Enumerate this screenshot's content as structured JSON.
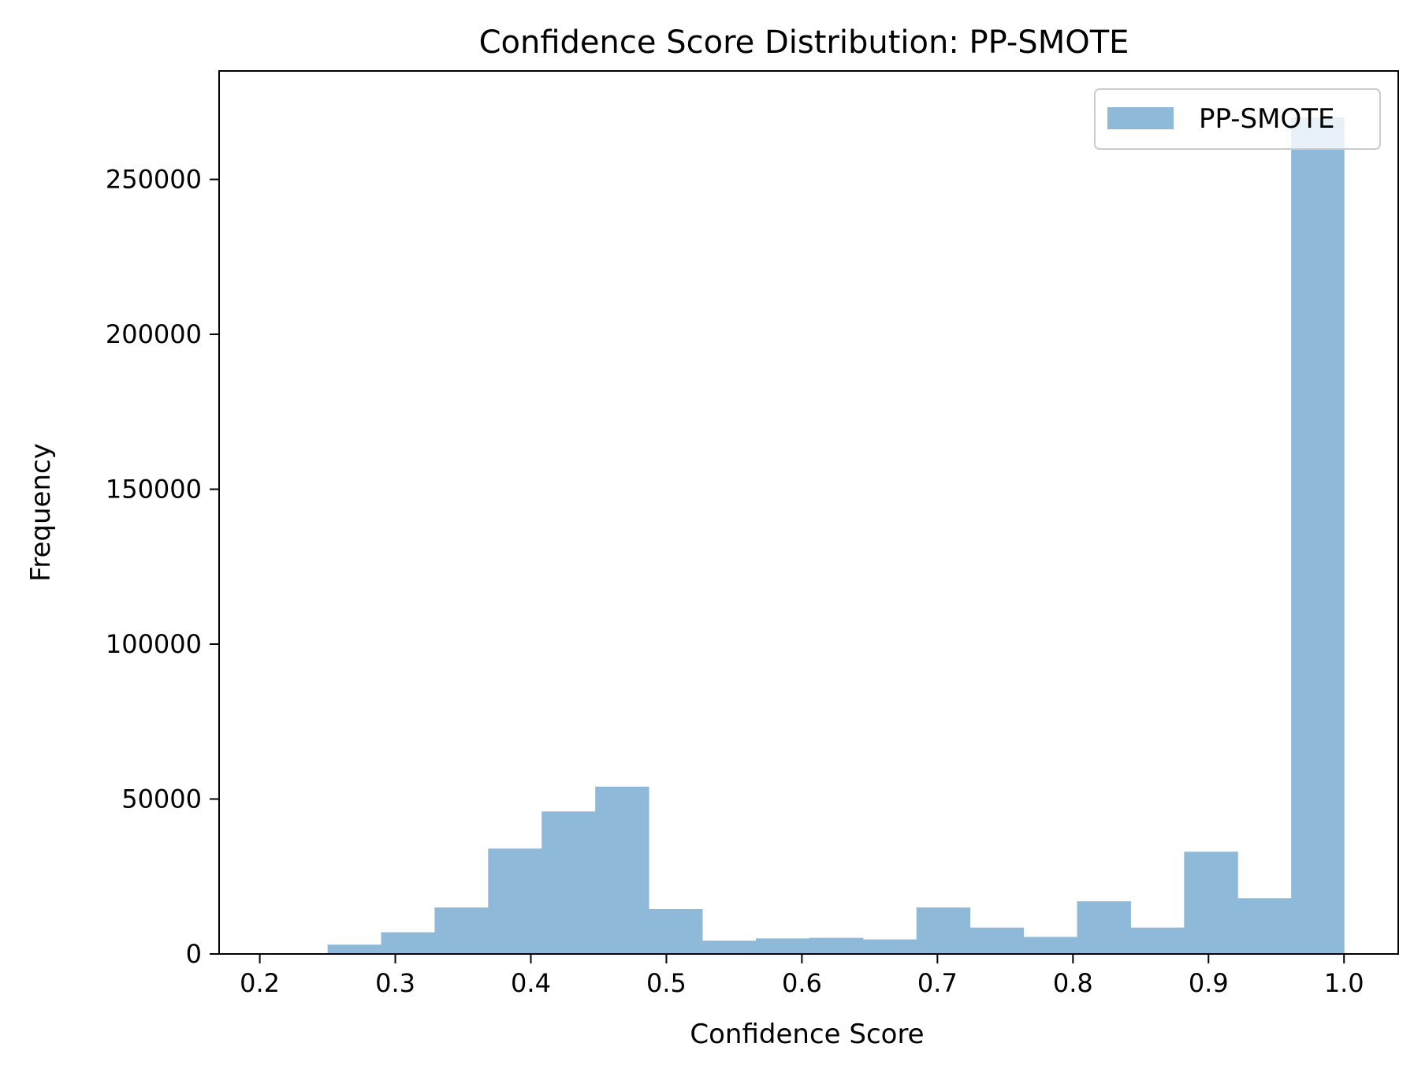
{
  "chart_data": {
    "type": "bar",
    "title": "Confidence Score Distribution: PP-SMOTE",
    "xlabel": "Confidence Score",
    "ylabel": "Frequency",
    "xlim": [
      0.17,
      1.04
    ],
    "ylim": [
      0,
      285000
    ],
    "xticks": [
      "0.2",
      "0.3",
      "0.4",
      "0.5",
      "0.6",
      "0.7",
      "0.8",
      "0.9",
      "1.0"
    ],
    "yticks": [
      "0",
      "50000",
      "100000",
      "150000",
      "200000",
      "250000"
    ],
    "bin_edges": [
      0.25,
      0.2895,
      0.329,
      0.3685,
      0.408,
      0.4475,
      0.487,
      0.5265,
      0.566,
      0.6055,
      0.645,
      0.6845,
      0.724,
      0.7635,
      0.803,
      0.8425,
      0.882,
      0.9215,
      0.961,
      1.0
    ],
    "series": [
      {
        "name": "PP-SMOTE",
        "color": "#8fb9d9",
        "values": [
          3000,
          7000,
          15000,
          34000,
          46000,
          54000,
          14500,
          4300,
          5000,
          5200,
          4700,
          15000,
          8500,
          5500,
          17000,
          8500,
          33000,
          18000,
          270000
        ]
      }
    ],
    "grid": false,
    "legend": "top-right"
  }
}
